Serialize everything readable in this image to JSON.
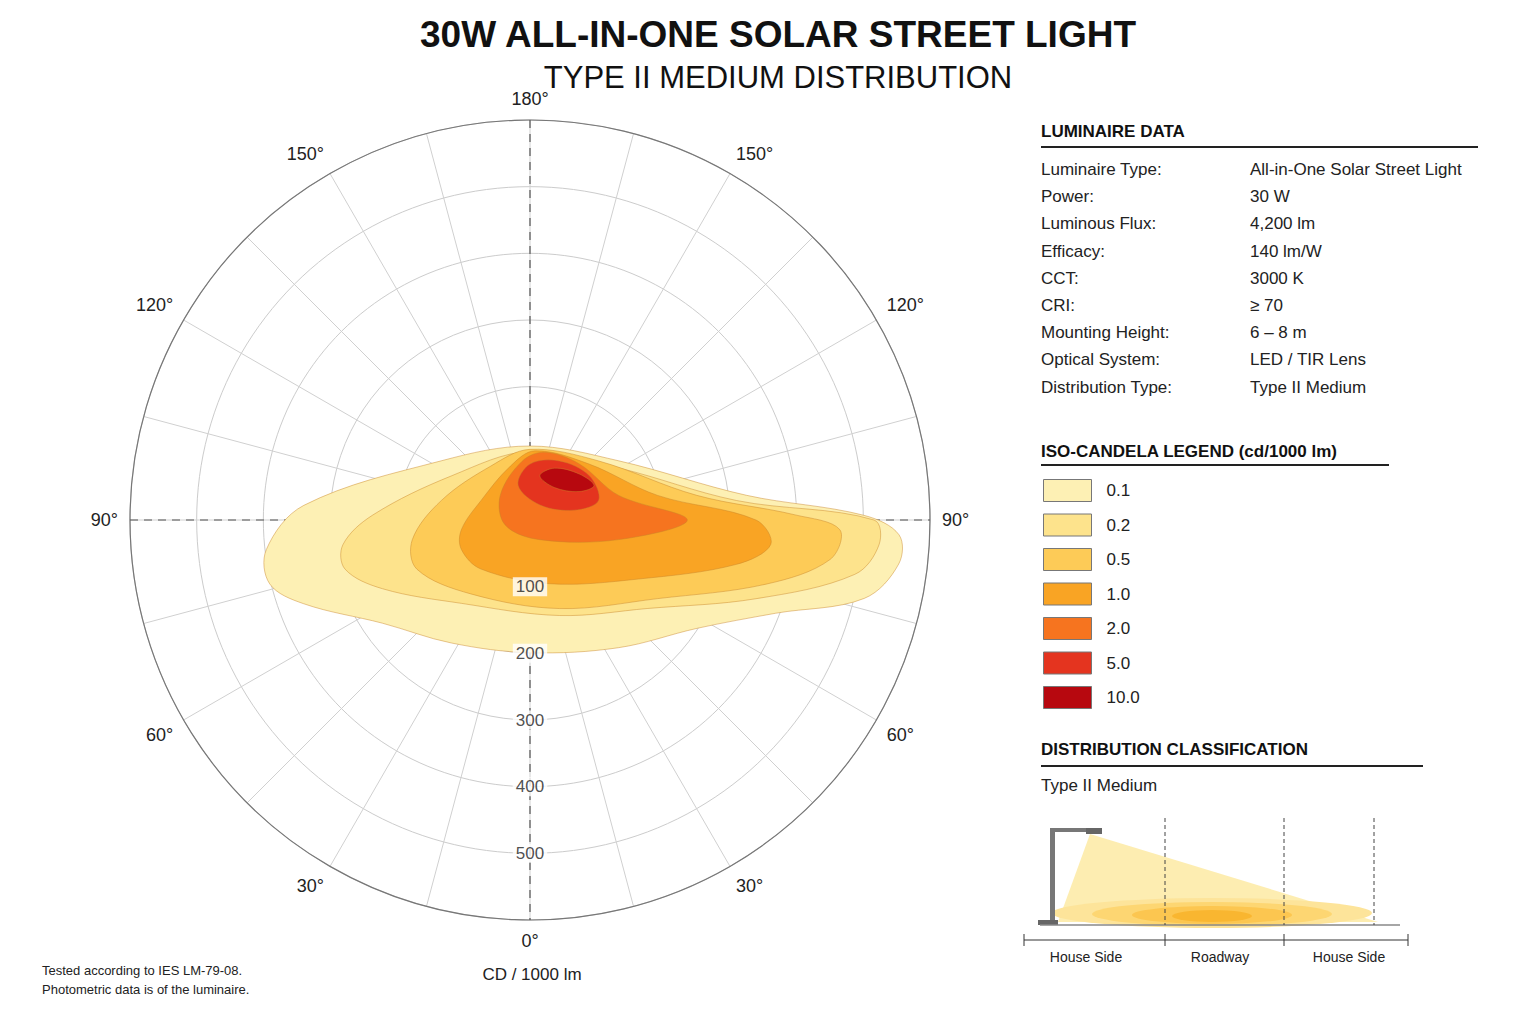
{
  "chart_data": {
    "type": "polar_isocandela",
    "title": "30W ALL-IN-ONE SOLAR STREET LIGHT",
    "subtitle": "TYPE II MEDIUM DISTRIBUTION",
    "radius_label": "CD / 1000 lm",
    "rlim": [
      0,
      600
    ],
    "rticks": [
      100,
      200,
      300,
      400,
      500
    ],
    "anglelim": [
      -180,
      180
    ],
    "angleticks": [
      {
        "value": -180,
        "label": "180°"
      },
      {
        "value": -150,
        "label": "150°"
      },
      {
        "value": -120,
        "label": "120°"
      },
      {
        "value": -90,
        "label": "90°"
      },
      {
        "value": -60,
        "label": "60°"
      },
      {
        "value": -30,
        "label": "30°"
      },
      {
        "value": 0,
        "label": "0°"
      },
      {
        "value": 30,
        "label": "30°"
      },
      {
        "value": 60,
        "label": "60°"
      },
      {
        "value": 90,
        "label": "90°"
      },
      {
        "value": 120,
        "label": "120°"
      },
      {
        "value": 150,
        "label": "150°"
      }
    ],
    "grid": true,
    "legend": "right",
    "legend_title": "ISO-CANDELA LEGEND (cd/1000 lm)",
    "series": [
      {
        "name": "0.1",
        "color": "#fdf0b4",
        "points": [
          [
            398,
            -83.6
          ],
          [
            402,
            -76.2
          ],
          [
            362,
            -69.7
          ],
          [
            270,
            -55.0
          ],
          [
            219,
            -32.6
          ],
          [
            199,
            0
          ],
          [
            233,
            34.7
          ],
          [
            299,
            57.1
          ],
          [
            394,
            69.2
          ],
          [
            515,
            76.8
          ],
          [
            557,
            83.2
          ],
          [
            554,
            87.7
          ],
          [
            501,
            90.8
          ],
          [
            327,
            96.5
          ],
          [
            160,
            123.7
          ],
          [
            111,
            180
          ],
          [
            160,
            -123.7
          ],
          [
            340,
            -93.7
          ]
        ]
      },
      {
        "name": "0.2",
        "color": "#fde38c",
        "points": [
          [
            283,
            -82.5
          ],
          [
            287,
            -75.1
          ],
          [
            244,
            -65.0
          ],
          [
            162,
            -39.5
          ],
          [
            150,
            17.2
          ],
          [
            221,
            53.1
          ],
          [
            359,
            70.8
          ],
          [
            494,
            80.5
          ],
          [
            525,
            86.0
          ],
          [
            516,
            90
          ],
          [
            311,
            95.4
          ],
          [
            154,
            120.5
          ],
          [
            103,
            180
          ],
          [
            135,
            -119.4
          ],
          [
            236,
            -91.8
          ]
        ]
      },
      {
        "name": "0.5",
        "color": "#fdcb57",
        "points": [
          [
            179,
            -80.5
          ],
          [
            185,
            -66.5
          ],
          [
            142,
            -38.7
          ],
          [
            140,
            18.4
          ],
          [
            225,
            58.4
          ],
          [
            367,
            74.8
          ],
          [
            454,
            82.5
          ],
          [
            465,
            88.2
          ],
          [
            398,
            91.1
          ],
          [
            253,
            98.4
          ],
          [
            136,
            130.6
          ],
          [
            106,
            180
          ],
          [
            100,
            -144.0
          ],
          [
            136,
            -102.5
          ]
        ]
      },
      {
        "name": "1.0",
        "color": "#f9a424",
        "points": [
          [
            104,
            -81.9
          ],
          [
            112,
            -66.8
          ],
          [
            104,
            -45.0
          ],
          [
            100,
            17.1
          ],
          [
            185,
            61.4
          ],
          [
            317,
            77.9
          ],
          [
            363,
            84.2
          ],
          [
            339,
            90
          ],
          [
            195,
            100.9
          ],
          [
            122,
            133.5
          ],
          [
            104,
            175.9
          ],
          [
            86,
            -160.0
          ],
          [
            79,
            -111.8
          ]
        ]
      },
      {
        "name": "2.0",
        "color": "#f6741f",
        "points": [
          [
            89,
            -172.4
          ],
          [
            58,
            -129.8
          ],
          [
            38,
            -78.7
          ],
          [
            33,
            26.6
          ],
          [
            136,
            77.5
          ],
          [
            236,
            90
          ],
          [
            138,
            105.5
          ],
          [
            112,
            138.7
          ],
          [
            104,
            167.7
          ]
        ]
      },
      {
        "name": "5.0",
        "color": "#e4341f",
        "points": [
          [
            84,
            180
          ],
          [
            55,
            -161.1
          ],
          [
            27,
            146.3
          ],
          [
            68,
            102.5
          ],
          [
            107,
            105.9
          ],
          [
            111,
            126.9
          ],
          [
            99,
            153.4
          ]
        ]
      },
      {
        "name": "10.0",
        "color": "#b7080f",
        "points": [
          [
            68,
            167.5
          ],
          [
            86,
            154.7
          ],
          [
            101,
            133.2
          ],
          [
            109,
            118.3
          ],
          [
            85,
            120.1
          ],
          [
            61,
            142.9
          ]
        ]
      }
    ]
  },
  "luminaire_data": {
    "title": "LUMINAIRE DATA",
    "rows": [
      [
        "Luminaire Type:",
        "All-in-One Solar Street Light"
      ],
      [
        "Power:",
        "30 W"
      ],
      [
        "Luminous Flux:",
        "4,200 lm"
      ],
      [
        "Efficacy:",
        "140 lm/W"
      ],
      [
        "CCT:",
        "3000 K"
      ],
      [
        "CRI:",
        "≥ 70"
      ],
      [
        "Mounting Height:",
        "6 – 8 m"
      ],
      [
        "Optical System:",
        "LED / TIR Lens"
      ],
      [
        "Distribution Type:",
        "Type II Medium"
      ]
    ]
  },
  "distribution_classification": {
    "title": "DISTRIBUTION CLASSIFICATION",
    "value": "Type II Medium",
    "zones": [
      "House Side",
      "Roadway",
      "House Side"
    ]
  },
  "footnote": [
    "Tested according to IES LM-79-08.",
    "Photometric data is of the luminaire."
  ]
}
